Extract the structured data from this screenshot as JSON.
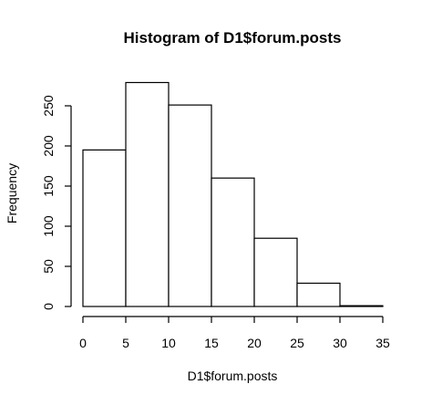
{
  "chart_data": {
    "type": "bar",
    "title": "Histogram of D1$forum.posts",
    "xlabel": "D1$forum.posts",
    "ylabel": "Frequency",
    "bins": [
      {
        "from": 0,
        "to": 5,
        "count": 195
      },
      {
        "from": 5,
        "to": 10,
        "count": 279
      },
      {
        "from": 10,
        "to": 15,
        "count": 251
      },
      {
        "from": 15,
        "to": 20,
        "count": 160
      },
      {
        "from": 20,
        "to": 25,
        "count": 85
      },
      {
        "from": 25,
        "to": 30,
        "count": 29
      },
      {
        "from": 30,
        "to": 35,
        "count": 1
      }
    ],
    "xlim": [
      0,
      35
    ],
    "ylim": [
      0,
      280
    ],
    "x_ticks": [
      0,
      5,
      10,
      15,
      20,
      25,
      30,
      35
    ],
    "y_ticks": [
      0,
      50,
      100,
      150,
      200,
      250
    ],
    "grid": false,
    "bar_fill": "#ffffff",
    "bar_stroke": "#000000"
  }
}
